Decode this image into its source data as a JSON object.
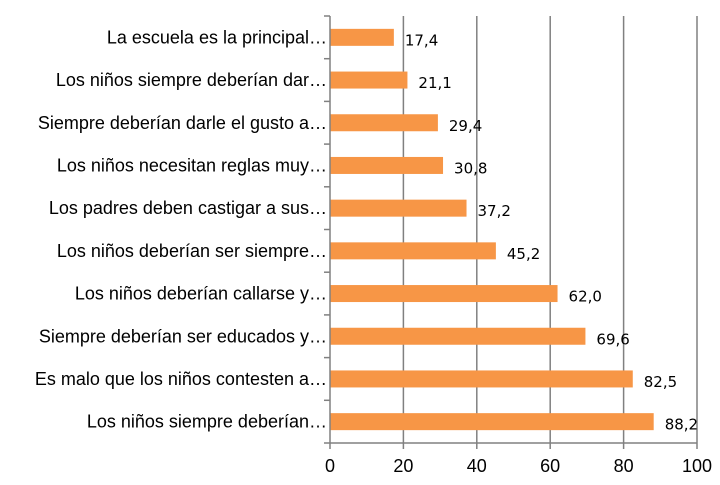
{
  "chart_data": {
    "type": "bar",
    "orientation": "horizontal",
    "categories": [
      "La escuela es la principal…",
      "Los niños siempre deberían dar…",
      "Siempre deberían darle el gusto a…",
      "Los niños necesitan reglas muy…",
      "Los padres deben castigar a sus…",
      "Los niños deberían ser siempre…",
      "Los niños deberían callarse y…",
      "Siempre deberían ser educados y…",
      "Es malo que los niños contesten a…",
      "Los niños siempre deberían…"
    ],
    "values": [
      17.4,
      21.1,
      29.4,
      30.8,
      37.2,
      45.2,
      62.0,
      69.6,
      82.5,
      88.2
    ],
    "data_labels": [
      "17,4",
      "21,1",
      "29,4",
      "30,8",
      "37,2",
      "45,2",
      "62,0",
      "69,6",
      "82,5",
      "88,2"
    ],
    "xlim": [
      0,
      100
    ],
    "x_ticks": [
      0,
      20,
      40,
      60,
      80,
      100
    ],
    "x_tick_labels": [
      "0",
      "20",
      "40",
      "60",
      "80",
      "100"
    ],
    "title": "",
    "xlabel": "",
    "ylabel": "",
    "grid": "vertical",
    "legend": "none",
    "colors": {
      "bar": "#F79646",
      "grid": "#808080",
      "axis": "#808080"
    }
  }
}
